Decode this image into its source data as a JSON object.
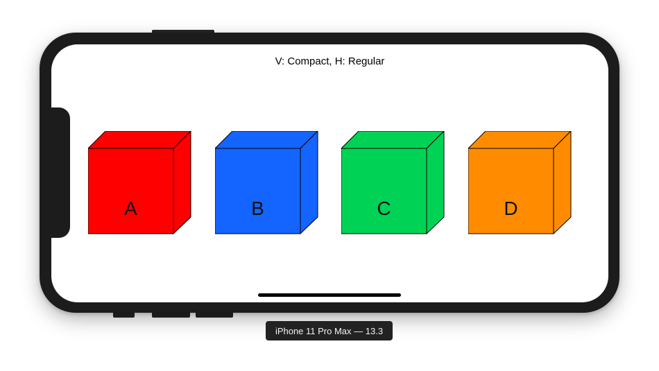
{
  "screen": {
    "size_class_label": "V: Compact, H: Regular"
  },
  "cubes": [
    {
      "label": "A",
      "front": "#FF0000",
      "top": "#FF0000",
      "side": "#FF0000"
    },
    {
      "label": "B",
      "front": "#1464FF",
      "top": "#1464FF",
      "side": "#1464FF"
    },
    {
      "label": "C",
      "front": "#00D255",
      "top": "#00D255",
      "side": "#00D255"
    },
    {
      "label": "D",
      "front": "#FF8C00",
      "top": "#FF8C00",
      "side": "#FF8C00"
    }
  ],
  "device_tag": "iPhone 11 Pro Max — 13.3"
}
